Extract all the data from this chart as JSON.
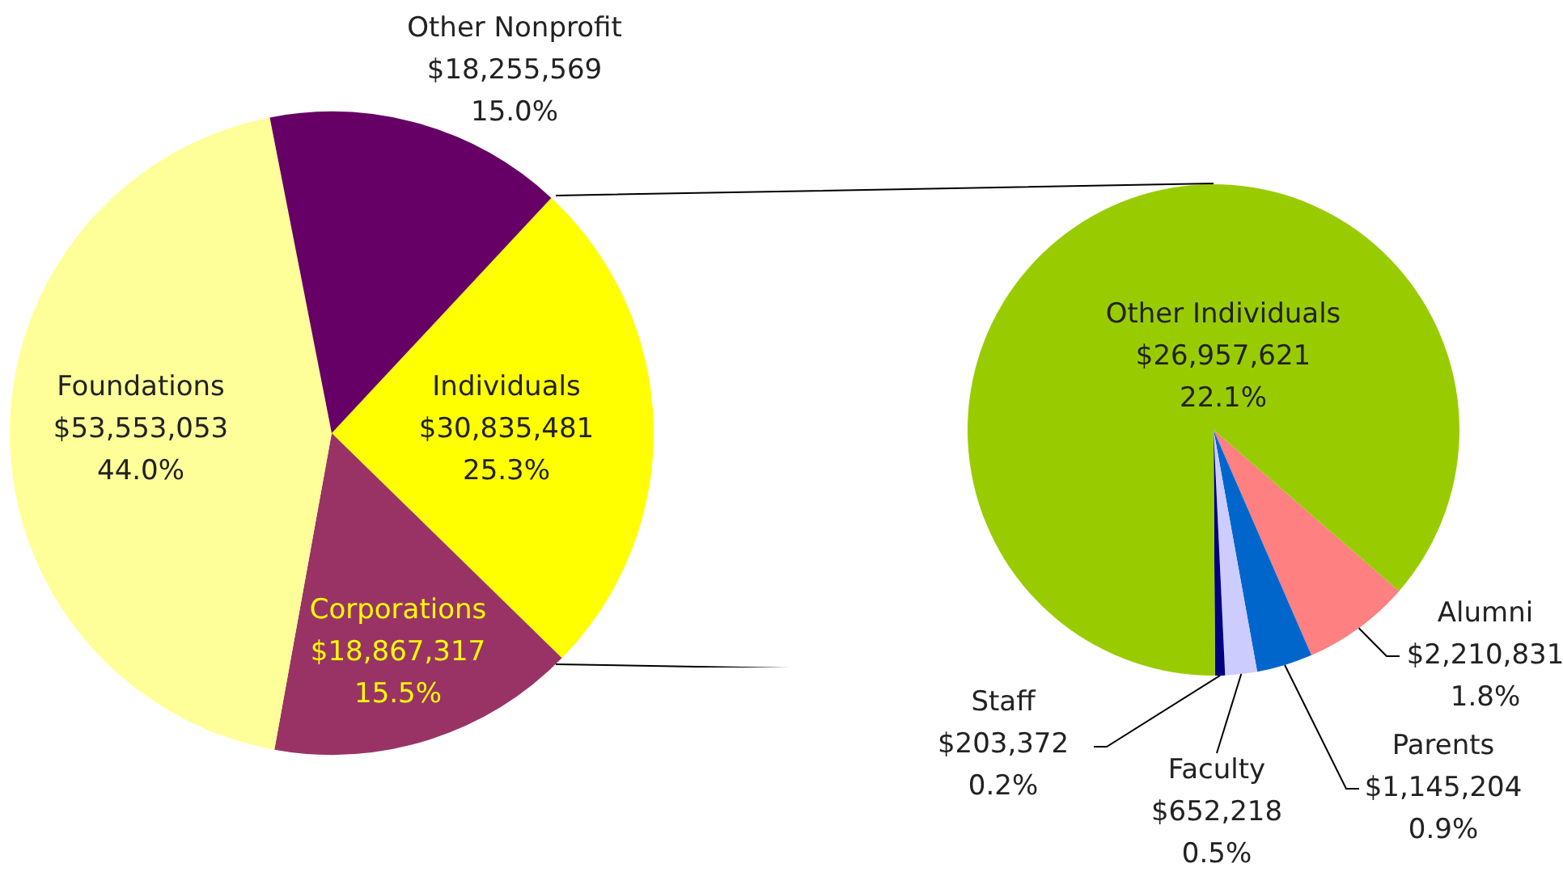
{
  "chart_data": [
    {
      "type": "pie",
      "categories": [
        "Individuals",
        "Corporations",
        "Foundations",
        "Other Nonprofit"
      ],
      "values": [
        30835481,
        18867317,
        53553053,
        18255569
      ],
      "colors": [
        "#ffff00",
        "#993366",
        "#ffff99",
        "#660066"
      ],
      "value_labels": [
        "$30,835,481\n25.3%",
        "$18,867,317\n15.5%",
        "$53,553,053\n44.0%",
        "$18,255,569\n15.0%"
      ]
    },
    {
      "type": "pie",
      "categories": [
        "Alumni",
        "Parents",
        "Faculty",
        "Staff",
        "Other Individuals"
      ],
      "values": [
        2210831,
        1145204,
        652218,
        203372,
        26957621
      ],
      "colors": [
        "#ff8080",
        "#0066cc",
        "#ccccff",
        "#000080",
        "#99cc00"
      ],
      "value_labels": [
        "$2,210,831\n1.8%",
        "$1,145,204\n0.9%",
        "$652,218\n0.5%",
        "$203,372\n0.2%",
        "$26,957,621\n22.1%"
      ]
    }
  ]
}
